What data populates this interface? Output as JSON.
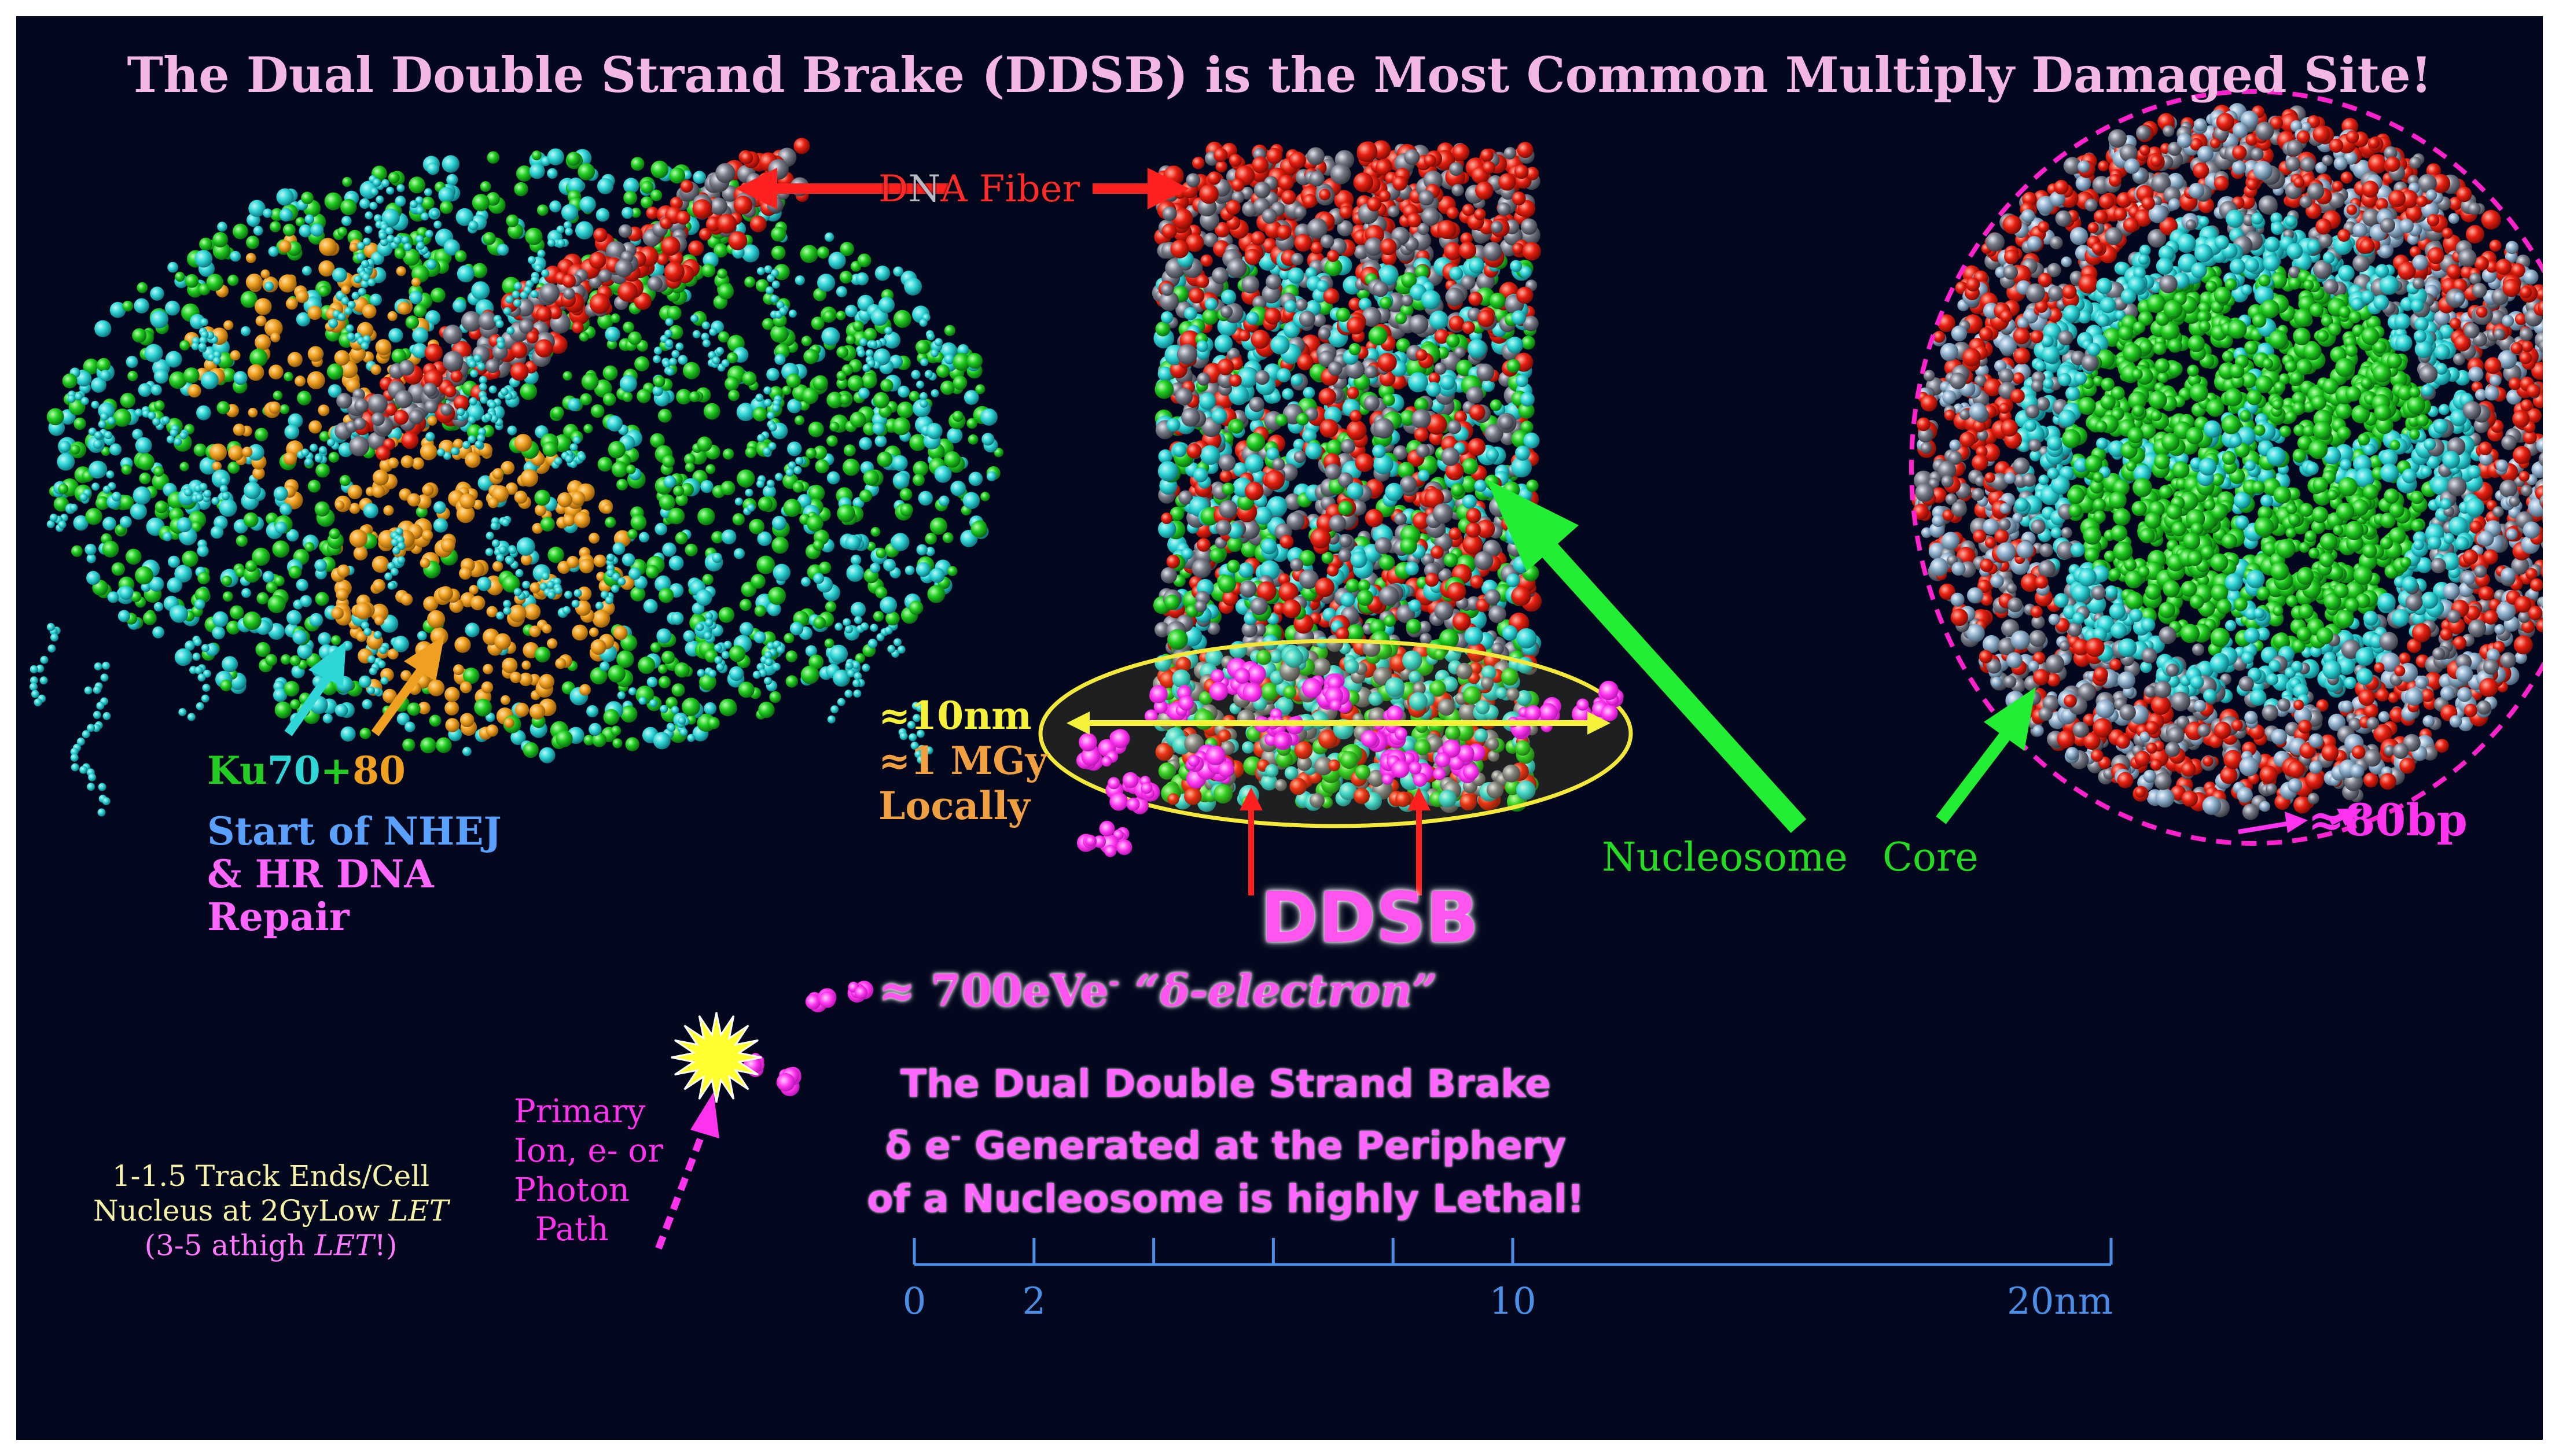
{
  "title": {
    "part1": "The Dual Double Strand Brake (DDSB) is the Most Common Multiply Damaged Site!",
    "color_part1": "#f3b7e3",
    "color_part2": "#f6f3a8"
  },
  "dna_fiber_label": {
    "letter_d": "D",
    "letter_n": "N",
    "letter_a": "A",
    "rest": " Fiber"
  },
  "ku_label": {
    "ku": "Ku",
    "n70": "70",
    "plus": "+",
    "n80": "80"
  },
  "nhej_label": {
    "line1": "Start of NHEJ",
    "line2": "& HR DNA",
    "line3": "Repair"
  },
  "scale_label": {
    "size": "≈10nm",
    "dose": "≈1 MGy",
    "locally": "Locally"
  },
  "ddsb_label": "DDSB",
  "nucleosome_label": {
    "nucleosome": "Nucleosome",
    "core": "Core"
  },
  "bp_label": "≈80bp",
  "delta_electron_label": {
    "approx": "≈",
    "energy": "700eVe",
    "superscript": "-",
    "quote": "“δ-electron”"
  },
  "statement": {
    "line1": "The Dual Double Strand Brake",
    "line2_symbol": "δ e",
    "line2_superscript": "-",
    "line2_rest": " Generated at the Periphery",
    "line3": "of a Nucleosome is highly Lethal!"
  },
  "primary_path_label": {
    "line1": "Primary",
    "line2": "Ion, e- or",
    "line3": "Photon",
    "line4": "Path"
  },
  "track_note": {
    "line1": "1-1.5 Track Ends/Cell",
    "line2_prefix": "Nucleus at 2GyLow ",
    "line2_let": "LET",
    "line3_prefix": "(3-5 athigh ",
    "line3_let": "LET",
    "line3_suffix": "!)"
  },
  "scale_bar": {
    "unit_label": "20nm",
    "ticks": [
      {
        "value": 0,
        "label": "0"
      },
      {
        "value": 2,
        "label": "2"
      },
      {
        "value": 4,
        "label": ""
      },
      {
        "value": 6,
        "label": ""
      },
      {
        "value": 8,
        "label": ""
      },
      {
        "value": 10,
        "label": "10"
      },
      {
        "value": 20,
        "label": ""
      }
    ],
    "min": 0,
    "max": 20
  },
  "colors": {
    "background": "#04081e",
    "cyan": "#2fd6d6",
    "green": "#1fcc1f",
    "orange": "#f0a020",
    "red": "#e82010",
    "grey": "#767a86",
    "magenta": "#ff33ee",
    "yellow": "#f2f04a",
    "scale_blue": "#4a8ee8",
    "arrow_green": "#22ee33",
    "label_pink": "#ff66ff"
  }
}
